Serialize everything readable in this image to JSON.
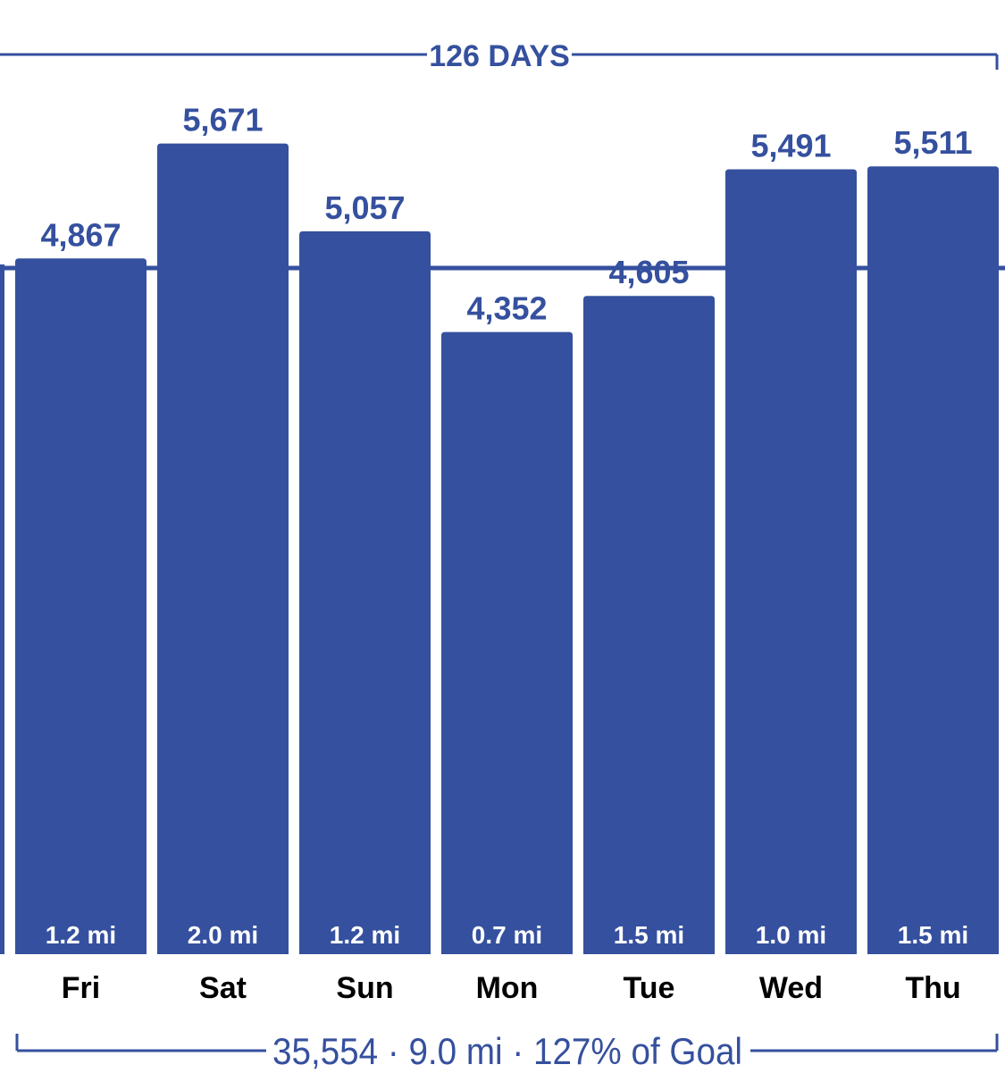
{
  "colors": {
    "bar": "#35509e",
    "text": "#35509e",
    "dist_text": "#ffffff",
    "day_text": "#000000",
    "background": "#ffffff"
  },
  "header": {
    "period_label": "126 DAYS"
  },
  "footer": {
    "summary": "35,554 · 9.0 mi · 127% of Goal"
  },
  "chart_data": {
    "type": "bar",
    "categories": [
      "Fri",
      "Sat",
      "Sun",
      "Mon",
      "Tue",
      "Wed",
      "Thu"
    ],
    "values": [
      4867,
      5671,
      5057,
      4352,
      4605,
      5491,
      5511
    ],
    "value_labels": [
      "4,867",
      "5,671",
      "5,057",
      "4,352",
      "4,605",
      "5,491",
      "5,511"
    ],
    "distance_labels": [
      "1.2 mi",
      "2.0 mi",
      "1.2 mi",
      "0.7 mi",
      "1.5 mi",
      "1.0 mi",
      "1.5 mi"
    ],
    "reference_line": 4800,
    "ylim": [
      0,
      6000
    ],
    "grid": false,
    "title": "",
    "xlabel": "",
    "ylabel": ""
  }
}
